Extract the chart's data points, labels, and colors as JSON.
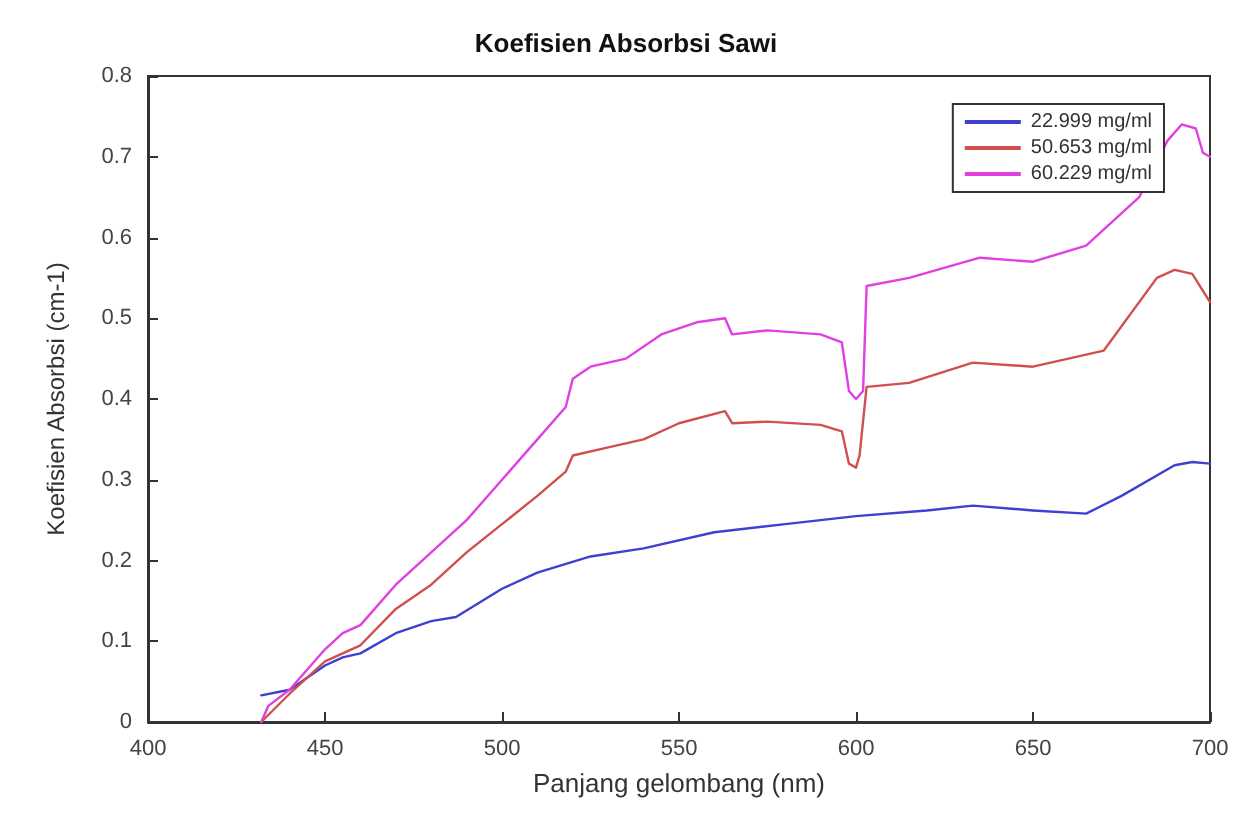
{
  "chart_data": {
    "type": "line",
    "title": "Koefisien Absorbsi Sawi",
    "xlabel": "Panjang gelombang (nm)",
    "ylabel": "Koefisien Absorbsi (cm-1)",
    "xlim": [
      400,
      700
    ],
    "xticks": [
      400,
      450,
      500,
      550,
      600,
      650,
      700
    ],
    "ylim": [
      0,
      0.8
    ],
    "yticks": [
      0,
      0.1,
      0.2,
      0.3,
      0.4,
      0.5,
      0.6,
      0.7,
      0.8
    ],
    "grid": false,
    "legend": "top right",
    "line_style": "solid",
    "marker": "none",
    "series": [
      {
        "name": "22.999 mg/ml",
        "color": "#4040d0",
        "x": [
          432,
          440,
          450,
          455,
          460,
          470,
          480,
          487,
          500,
          510,
          525,
          540,
          560,
          580,
          600,
          620,
          633,
          650,
          665,
          675,
          690,
          695,
          700
        ],
        "values": [
          0.033,
          0.04,
          0.07,
          0.08,
          0.085,
          0.11,
          0.125,
          0.13,
          0.165,
          0.185,
          0.205,
          0.215,
          0.235,
          0.245,
          0.255,
          0.262,
          0.268,
          0.262,
          0.258,
          0.28,
          0.318,
          0.322,
          0.32
        ]
      },
      {
        "name": "50.653 mg/ml",
        "color": "#d05050",
        "x": [
          432,
          440,
          450,
          460,
          470,
          480,
          490,
          500,
          510,
          518,
          520,
          530,
          540,
          550,
          563,
          565,
          575,
          590,
          596,
          598,
          600,
          601,
          603,
          615,
          633,
          650,
          670,
          685,
          690,
          695,
          700
        ],
        "values": [
          0.0,
          0.035,
          0.075,
          0.095,
          0.14,
          0.17,
          0.21,
          0.245,
          0.28,
          0.31,
          0.33,
          0.34,
          0.35,
          0.37,
          0.385,
          0.37,
          0.372,
          0.368,
          0.36,
          0.32,
          0.315,
          0.33,
          0.415,
          0.42,
          0.445,
          0.44,
          0.46,
          0.55,
          0.56,
          0.555,
          0.52
        ]
      },
      {
        "name": "60.229 mg/ml",
        "color": "#e040e0",
        "x": [
          432,
          434,
          440,
          450,
          455,
          460,
          470,
          480,
          490,
          500,
          510,
          518,
          520,
          525,
          535,
          545,
          555,
          563,
          565,
          575,
          590,
          596,
          598,
          600,
          602,
          603,
          615,
          635,
          650,
          665,
          680,
          688,
          692,
          696,
          698,
          700
        ],
        "values": [
          0.0,
          0.02,
          0.04,
          0.09,
          0.11,
          0.12,
          0.17,
          0.21,
          0.25,
          0.3,
          0.35,
          0.39,
          0.425,
          0.44,
          0.45,
          0.48,
          0.495,
          0.5,
          0.48,
          0.485,
          0.48,
          0.47,
          0.41,
          0.4,
          0.41,
          0.54,
          0.55,
          0.575,
          0.57,
          0.59,
          0.65,
          0.72,
          0.74,
          0.735,
          0.705,
          0.7
        ]
      }
    ]
  }
}
